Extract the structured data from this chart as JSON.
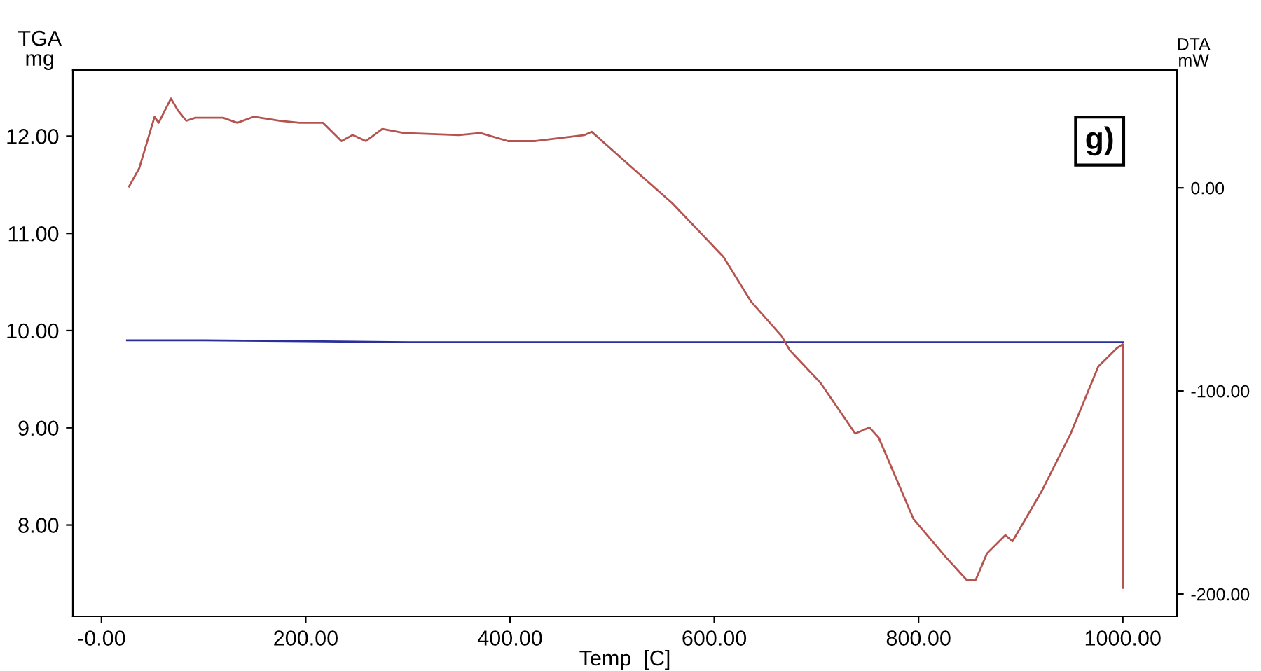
{
  "chart_data": {
    "type": "line",
    "xlabel": "Temp  [C]",
    "ylabel": "TGA\nmg",
    "y2label": "DTA\nmW",
    "annotations": [
      "g)"
    ],
    "xlim": [
      -28,
      1053
    ],
    "ylim": [
      7.06,
      12.68
    ],
    "y2lim": [
      -211,
      58
    ],
    "xticks": [
      {
        "value": 0,
        "label": "-0.00"
      },
      {
        "value": 200,
        "label": "200.00"
      },
      {
        "value": 400,
        "label": "400.00"
      },
      {
        "value": 600,
        "label": "600.00"
      },
      {
        "value": 800,
        "label": "800.00"
      },
      {
        "value": 1000,
        "label": "1000.00"
      }
    ],
    "yticks": [
      {
        "value": 8,
        "label": "8.00"
      },
      {
        "value": 9,
        "label": "9.00"
      },
      {
        "value": 10,
        "label": "10.00"
      },
      {
        "value": 11,
        "label": "11.00"
      },
      {
        "value": 12,
        "label": "12.00"
      }
    ],
    "y2ticks": [
      {
        "value": -200,
        "label": "-200.00"
      },
      {
        "value": -100,
        "label": "-100.00"
      },
      {
        "value": 0,
        "label": "0.00"
      }
    ],
    "grid": false,
    "series": [
      {
        "color": "#2a2f9a",
        "x": [
          25,
          100,
          200,
          300,
          400,
          500,
          600,
          700,
          800,
          900,
          1000
        ],
        "values": [
          9.9,
          9.9,
          9.89,
          9.88,
          9.88,
          9.88,
          9.88,
          9.88,
          9.88,
          9.88,
          9.88
        ]
      },
      {
        "color": "#b5534f",
        "axis": "y2",
        "x": [
          27,
          37,
          52,
          56,
          68,
          75,
          83,
          92,
          119,
          133,
          149,
          174,
          194,
          217,
          225,
          235,
          246,
          259,
          275,
          296,
          350,
          371,
          398,
          425,
          473,
          480,
          514,
          559,
          609,
          636,
          666,
          674,
          704,
          738,
          752,
          761,
          795,
          827,
          847,
          856,
          867,
          885,
          892,
          921,
          949,
          976,
          994,
          1000,
          1000
        ],
        "values": [
          0.7,
          9.7,
          35,
          32,
          44,
          38,
          33,
          34.5,
          34.5,
          32,
          35,
          33,
          32,
          32,
          28,
          23,
          26,
          23,
          29,
          27,
          26,
          27,
          23,
          23,
          26,
          27.6,
          12.4,
          -7.6,
          -34,
          -56,
          -73,
          -80,
          -96,
          -121,
          -118,
          -123,
          -163,
          -182,
          -193,
          -193,
          -180,
          -171,
          -174,
          -149,
          -121,
          -88,
          -79,
          -77,
          -197
        ]
      }
    ]
  }
}
